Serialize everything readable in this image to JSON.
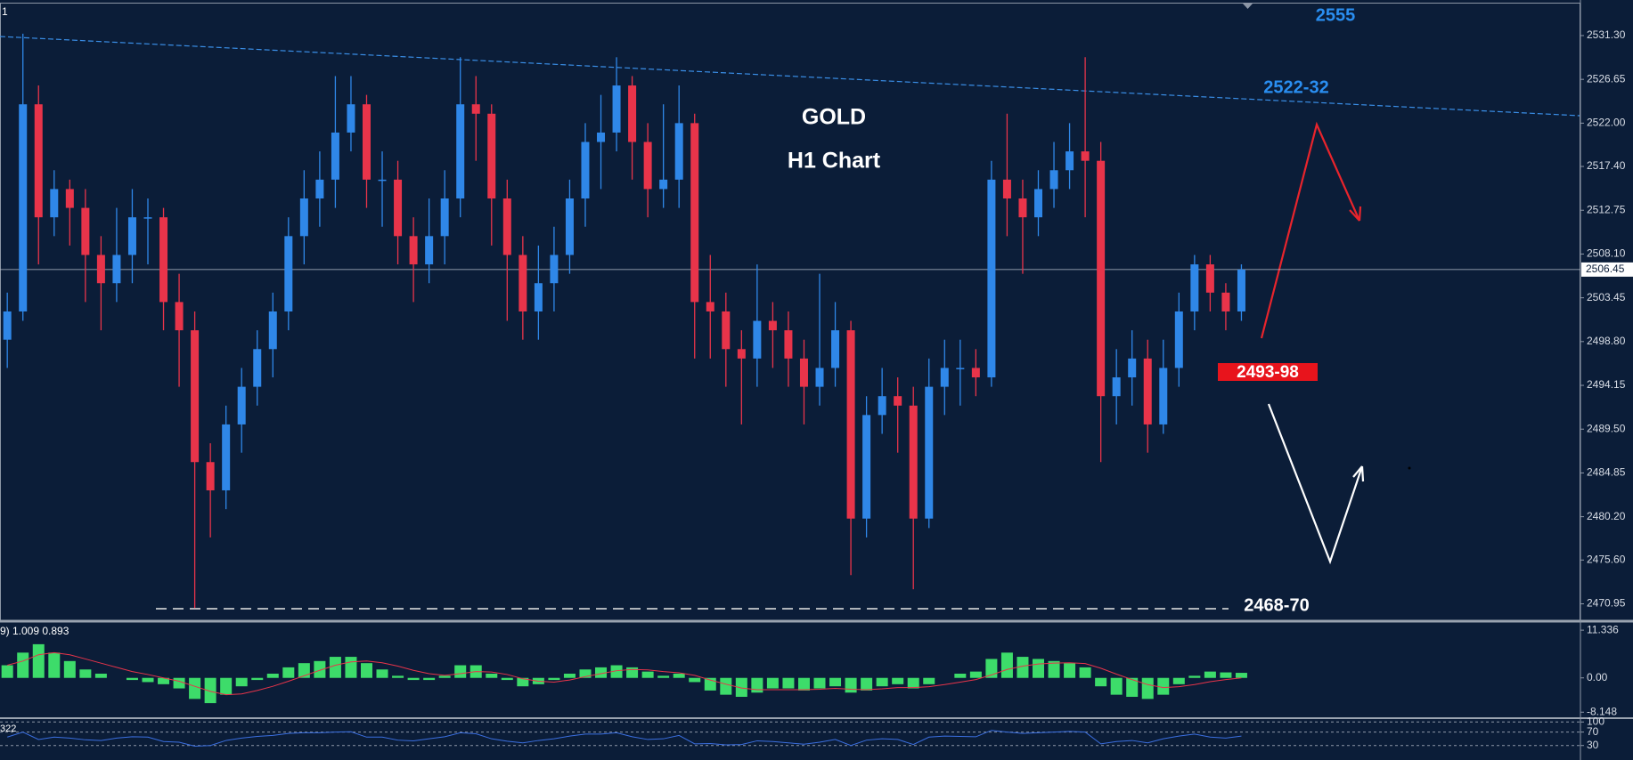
{
  "chart_data": [
    {
      "type": "candlestick",
      "corner_label": "1",
      "title": "GOLD",
      "subtitle": "H1 Chart",
      "annotations": [
        "2555",
        "2522-32",
        "2493-98",
        "2468-70"
      ],
      "up_color": "#2f87e8",
      "down_color": "#e8344a",
      "open": [
        2499,
        2502,
        2524,
        2512,
        2515,
        2513,
        2508,
        2505,
        2508,
        2512,
        2512,
        2503,
        2500,
        2486,
        2483,
        2490,
        2494,
        2498,
        2502,
        2510,
        2514,
        2516,
        2521,
        2524,
        2516,
        2516,
        2510,
        2507,
        2510,
        2514,
        2524,
        2523,
        2514,
        2508,
        2502,
        2505,
        2508,
        2514,
        2520,
        2521,
        2526,
        2520,
        2515,
        2516,
        2522,
        2503,
        2502,
        2498,
        2497,
        2501,
        2500,
        2497,
        2494,
        2496,
        2500,
        2480,
        2491,
        2493,
        2492,
        2480,
        2494,
        2496,
        2496,
        2495,
        2516,
        2514,
        2512,
        2515,
        2517,
        2519,
        2518,
        2493,
        2495,
        2497,
        2490,
        2496,
        2502,
        2507,
        2504,
        2502
      ],
      "high": [
        2504,
        2531.5,
        2526,
        2517,
        2516,
        2515,
        2510,
        2513,
        2515,
        2514,
        2513,
        2506,
        2502,
        2488,
        2492,
        2496,
        2500,
        2504,
        2512,
        2517,
        2519,
        2527,
        2527,
        2525,
        2519,
        2518,
        2512,
        2514,
        2517,
        2529,
        2527,
        2524,
        2516,
        2510,
        2509,
        2511,
        2516,
        2522,
        2525,
        2529,
        2527,
        2522,
        2524,
        2526,
        2523,
        2508,
        2504,
        2500,
        2507,
        2503,
        2502,
        2499,
        2506,
        2503,
        2501,
        2493,
        2496,
        2495,
        2494,
        2497,
        2499,
        2499,
        2498,
        2518,
        2523,
        2516,
        2517,
        2520,
        2522,
        2529,
        2520,
        2498,
        2500,
        2499,
        2499,
        2504,
        2508,
        2508,
        2505,
        2507
      ],
      "low": [
        2496,
        2501,
        2507,
        2510,
        2509,
        2503,
        2500,
        2503,
        2505,
        2507,
        2500,
        2494,
        2470.5,
        2478,
        2481,
        2487,
        2492,
        2495,
        2500,
        2507,
        2511,
        2513,
        2519,
        2513,
        2511,
        2507,
        2503,
        2505,
        2507,
        2512,
        2518,
        2509,
        2501,
        2499,
        2499,
        2502,
        2506,
        2511,
        2515,
        2519,
        2516,
        2512,
        2513,
        2513,
        2497,
        2497,
        2494,
        2490,
        2494,
        2496,
        2494,
        2490,
        2492,
        2494,
        2474,
        2478,
        2489,
        2487,
        2472.5,
        2479,
        2491,
        2492,
        2493,
        2494,
        2510,
        2506,
        2510,
        2513,
        2515,
        2512,
        2486,
        2490,
        2492,
        2487,
        2489,
        2494,
        2500,
        2502,
        2500,
        2501
      ],
      "close": [
        2502,
        2524,
        2512,
        2515,
        2513,
        2508,
        2505,
        2508,
        2512,
        2512,
        2503,
        2500,
        2486,
        2483,
        2490,
        2494,
        2498,
        2502,
        2510,
        2514,
        2516,
        2521,
        2524,
        2516,
        2516,
        2510,
        2507,
        2510,
        2514,
        2524,
        2523,
        2514,
        2508,
        2502,
        2505,
        2508,
        2514,
        2520,
        2521,
        2526,
        2520,
        2515,
        2516,
        2522,
        2503,
        2502,
        2498,
        2497,
        2501,
        2500,
        2497,
        2494,
        2496,
        2500,
        2480,
        2491,
        2493,
        2492,
        2480,
        2494,
        2496,
        2496,
        2495,
        2516,
        2514,
        2512,
        2515,
        2517,
        2519,
        2518,
        2493,
        2495,
        2497,
        2490,
        2496,
        2502,
        2507,
        2504,
        2502,
        2506.45
      ],
      "last_price": 2506.45,
      "ylim": [
        2469.2,
        2534.7
      ],
      "yticks": [
        {
          "value": 2531.3,
          "label": "2531.30"
        },
        2526.65,
        {
          "value": 2522,
          "label": "2522.00"
        },
        {
          "value": 2517.4,
          "label": "2517.40"
        },
        2512.75,
        {
          "value": 2508.1,
          "label": "2508.10"
        },
        2503.45,
        {
          "value": 2498.8,
          "label": "2498.80"
        },
        2494.15,
        {
          "value": 2489.5,
          "label": "2489.50"
        },
        2484.85,
        {
          "value": 2480.2,
          "label": "2480.20"
        },
        {
          "value": 2475.6,
          "label": "2475.60"
        },
        2470.95
      ]
    },
    {
      "type": "macd",
      "label": "9) 1.009 0.893",
      "series": [
        {
          "type": "bar",
          "color": "#3ddc6a",
          "values": [
            3,
            6,
            8,
            6,
            4,
            2,
            1,
            0,
            -0.5,
            -1,
            -1.5,
            -2.5,
            -5,
            -6,
            -4,
            -2,
            -0.5,
            1,
            2.5,
            3.5,
            4,
            5,
            5,
            3.5,
            2,
            0.5,
            -0.5,
            -0.5,
            0.5,
            3,
            3,
            1,
            -0.5,
            -2,
            -1.5,
            -0.5,
            1,
            2,
            2.5,
            3,
            2.5,
            1.5,
            0.5,
            1,
            -1,
            -3,
            -4,
            -4.5,
            -3.5,
            -2.5,
            -2.5,
            -3,
            -2.5,
            -2,
            -3.5,
            -3,
            -2,
            -1.5,
            -2.5,
            -1.5,
            0,
            1,
            1.5,
            4.5,
            6,
            5,
            4.5,
            4,
            3.5,
            2.5,
            -2,
            -4,
            -4.5,
            -5,
            -4,
            -1.5,
            0.5,
            1.5,
            1.3,
            1.2
          ]
        },
        {
          "type": "line",
          "color": "#e8344a",
          "values": [
            3,
            4,
            5.5,
            6,
            5.5,
            4.5,
            3.5,
            2.5,
            1.5,
            0.8,
            0,
            -0.8,
            -2,
            -3.2,
            -4,
            -3.8,
            -3,
            -2,
            -0.8,
            0.5,
            1.8,
            3,
            3.8,
            4,
            3.6,
            2.8,
            1.8,
            1,
            0.6,
            1,
            1.5,
            1.4,
            0.8,
            -0.2,
            -0.8,
            -1,
            -0.5,
            0.3,
            1,
            1.7,
            2,
            1.9,
            1.5,
            1.2,
            0.6,
            -0.5,
            -1.5,
            -2.4,
            -2.8,
            -2.8,
            -2.8,
            -2.8,
            -2.7,
            -2.5,
            -2.7,
            -2.8,
            -2.6,
            -2.3,
            -2.3,
            -2.1,
            -1.6,
            -1,
            -0.4,
            0.7,
            2,
            2.8,
            3.3,
            3.5,
            3.6,
            3.4,
            2.3,
            0.9,
            -0.4,
            -1.6,
            -2.3,
            -2.1,
            -1.6,
            -0.9,
            -0.4,
            0
          ]
        }
      ],
      "ylim": [
        -9.36,
        13.05
      ],
      "yticks": [
        11.336,
        {
          "value": 0,
          "label": "0.00"
        },
        -8.148
      ]
    },
    {
      "type": "line",
      "label": "322",
      "series": [
        {
          "color": "#3b6fe0",
          "values": [
            55,
            70,
            48,
            55,
            52,
            47,
            45,
            52,
            56,
            55,
            42,
            40,
            28,
            30,
            45,
            52,
            57,
            60,
            66,
            68,
            68,
            70,
            71,
            55,
            55,
            46,
            44,
            50,
            56,
            68,
            65,
            50,
            43,
            38,
            45,
            50,
            58,
            64,
            64,
            68,
            56,
            48,
            50,
            60,
            35,
            36,
            32,
            33,
            44,
            42,
            38,
            34,
            40,
            48,
            30,
            46,
            50,
            48,
            33,
            55,
            58,
            57,
            56,
            75,
            70,
            66,
            68,
            70,
            72,
            70,
            35,
            42,
            45,
            38,
            50,
            58,
            64,
            55,
            52,
            58
          ]
        }
      ],
      "ylim": [
        -13,
        106
      ],
      "yticks": [
        100,
        70,
        30
      ]
    }
  ]
}
